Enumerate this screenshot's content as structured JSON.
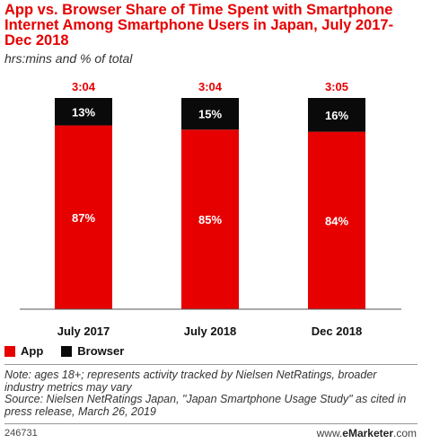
{
  "chart_data": {
    "type": "bar",
    "stacked": true,
    "title": "App vs. Browser Share of Time Spent with Smartphone Internet Among Smartphone Users in Japan, July 2017-Dec 2018",
    "subtitle": "hrs:mins and % of total",
    "categories": [
      "July 2017",
      "July 2018",
      "Dec 2018"
    ],
    "totals": [
      "3:04",
      "3:04",
      "3:05"
    ],
    "series": [
      {
        "name": "App",
        "color": "#e60000",
        "values": [
          87,
          85,
          84
        ],
        "labels": [
          "87%",
          "85%",
          "84%"
        ]
      },
      {
        "name": "Browser",
        "color": "#0a0a0a",
        "values": [
          13,
          15,
          16
        ],
        "labels": [
          "13%",
          "15%",
          "16%"
        ]
      }
    ],
    "ylim": [
      0,
      100
    ],
    "grid": false,
    "legend_position": "bottom-left"
  },
  "footer": {
    "note": "Note: ages 18+; represents activity tracked by Nielsen NetRatings, broader industry metrics may vary",
    "source": "Source: Nielsen NetRatings Japan, \"Japan Smartphone Usage Study\" as cited in press release, March 26, 2019",
    "chart_id": "246731",
    "brand_prefix": "www.",
    "brand_name": "eMarketer",
    "brand_suffix": ".com"
  }
}
